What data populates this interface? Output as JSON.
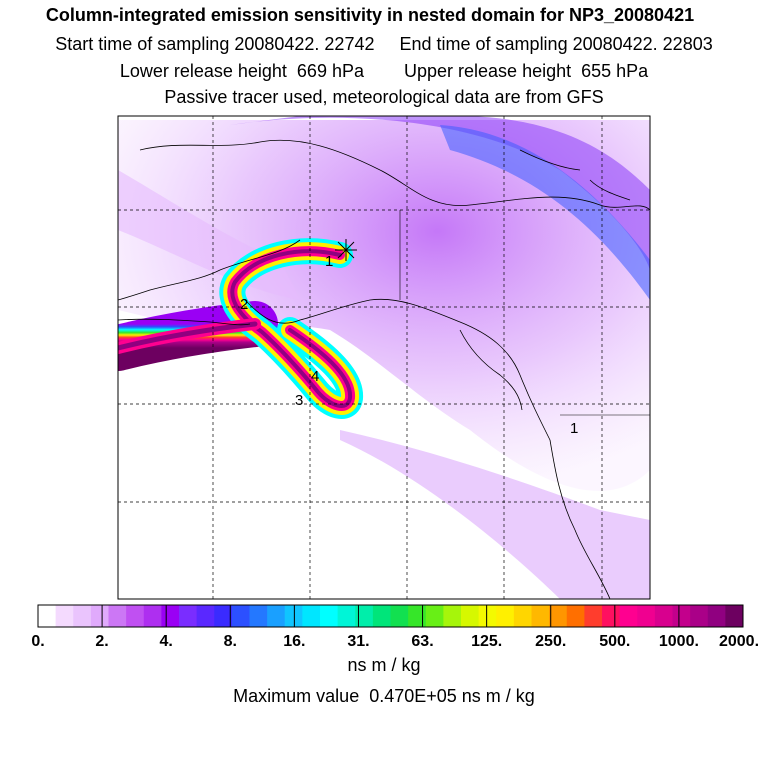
{
  "header": {
    "title": "Column-integrated emission sensitivity in nested domain for NP3_20080421",
    "sampling_start": "Start time of sampling 20080422. 22742",
    "sampling_end": "End time of sampling 20080422. 22803",
    "release_lower": "Lower release height  669 hPa",
    "release_upper": "Upper release height  655 hPa",
    "tracer_note": "Passive tracer used, meteorological data are from GFS"
  },
  "map": {
    "markers": [
      {
        "label": "1"
      },
      {
        "label": "2"
      },
      {
        "label": "3"
      },
      {
        "label": "4"
      },
      {
        "label": "1"
      }
    ]
  },
  "colorbar": {
    "ticks": [
      "0.",
      "2.",
      "4.",
      "8.",
      "16.",
      "31.",
      "63.",
      "125.",
      "250.",
      "500.",
      "1000.",
      "2000."
    ],
    "colors": [
      "#ffffff",
      "#f4dafe",
      "#eac4fd",
      "#e0aafc",
      "#cc77f5",
      "#c050f2",
      "#ae2ff0",
      "#9a00f4",
      "#7a2dff",
      "#5a28ff",
      "#3a2bff",
      "#2c50ff",
      "#2478ff",
      "#1aa0ff",
      "#10c5ff",
      "#00e6ff",
      "#00ffff",
      "#00f5d7",
      "#00eeaa",
      "#00e57a",
      "#12e050",
      "#36e629",
      "#68ef16",
      "#a6f50b",
      "#d6f800",
      "#f4fa00",
      "#fff000",
      "#ffd600",
      "#ffb800",
      "#ff9600",
      "#ff6f00",
      "#ff3d2d",
      "#ff1060",
      "#ff0090",
      "#f00090",
      "#d8008e",
      "#c3008c",
      "#aa0088",
      "#900080",
      "#6d0060"
    ]
  },
  "units": "ns m / kg",
  "maximum": "Maximum value  0.470E+05 ns m / kg"
}
